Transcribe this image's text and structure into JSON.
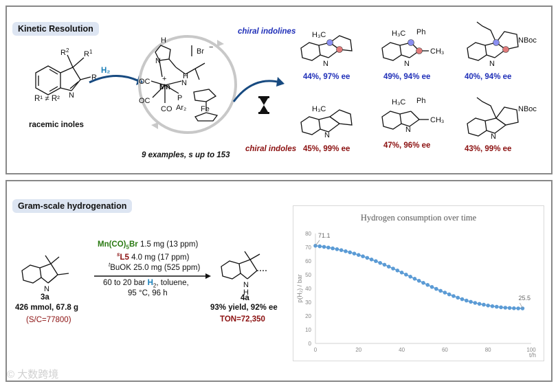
{
  "top_panel": {
    "title": "Kinetic Resolution",
    "substrate_label": "racemic inoles",
    "r_labels": {
      "r1": "R",
      "r1_sup": "1",
      "r2": "R",
      "r2_sup": "2",
      "r": "R",
      "neq": "R¹ ≠ R²"
    },
    "h2_label": "H₂",
    "catalyst": {
      "br": "Br",
      "br_charge": "−",
      "mn": "Mn",
      "plus": "+",
      "oc1": "OC",
      "oc2": "OC",
      "co": "CO",
      "p": "P",
      "ar2": "Ar₂",
      "fe": "Fe",
      "n": "N",
      "h1": "H",
      "h2": "H"
    },
    "examples_label": "9 examples, s up to 153",
    "chiral_indolines_label": "chiral indolines",
    "chiral_indoles_label": "chiral indoles",
    "indolines": [
      {
        "result": "44%, 97% ee",
        "sub": "H₃C",
        "nh": "N\nH"
      },
      {
        "result": "49%, 94% ee",
        "sub": "H₃C",
        "sub2": "Ph",
        "sub3": "CH₃"
      },
      {
        "result": "40%, 94% ee",
        "sub": "NBoc"
      }
    ],
    "indoles": [
      {
        "result": "45%, 99% ee",
        "sub": "H₃C"
      },
      {
        "result": "47%, 96% ee",
        "sub": "H₃C",
        "sub2": "Ph",
        "sub3": "CH₃"
      },
      {
        "result": "43%, 99% ee",
        "sub": "NBoc"
      }
    ]
  },
  "bottom_panel": {
    "title": "Gram-scale hydrogenation",
    "reactant": {
      "id": "3a",
      "amount": "426 mmol, 67.8 g",
      "sc": "(S/C=77800)"
    },
    "conditions": {
      "line1_a": "Mn(CO)",
      "line1_sub": "5",
      "line1_b": "Br",
      "line1_c": " 1.5 mg (13 ppm)",
      "line2_sup": "s",
      "line2_a": "L5",
      "line2_b": " 4.0 mg (17 ppm)",
      "line3_sup": "t",
      "line3": "BuOK 25.0 mg (525 ppm)",
      "line4_a": "60 to 20 bar ",
      "line4_b": "H",
      "line4_sub": "2",
      "line4_c": ", toluene,",
      "line5": "95 °C, 96 h"
    },
    "product": {
      "id": "4a",
      "yield": "93% yield, 92% ee",
      "ton": "TON=72,350",
      "nh": "N",
      "h": "H"
    }
  },
  "chart_data": {
    "type": "scatter",
    "title": "Hydrogen consumption over time",
    "xlabel": "t/h",
    "ylabel": "p(H₂) / bar",
    "xlim": [
      0,
      100
    ],
    "ylim": [
      0,
      80
    ],
    "xticks": [
      0,
      20,
      40,
      60,
      80,
      100
    ],
    "yticks": [
      0,
      10,
      20,
      30,
      40,
      50,
      60,
      70,
      80
    ],
    "annotations": [
      {
        "x": 0,
        "y": 71.1,
        "text": "71.1"
      },
      {
        "x": 96,
        "y": 25.5,
        "text": "25.5"
      }
    ],
    "color": "#5b9bd5",
    "x": [
      0,
      2,
      4,
      6,
      8,
      10,
      12,
      14,
      16,
      18,
      20,
      22,
      24,
      26,
      28,
      30,
      32,
      34,
      36,
      38,
      40,
      42,
      44,
      46,
      48,
      50,
      52,
      54,
      56,
      58,
      60,
      62,
      64,
      66,
      68,
      70,
      72,
      74,
      76,
      78,
      80,
      82,
      84,
      86,
      88,
      90,
      92,
      94,
      96
    ],
    "y": [
      71.1,
      70.7,
      70.3,
      69.8,
      69.2,
      68.6,
      67.9,
      67.1,
      66.3,
      65.4,
      64.4,
      63.4,
      62.3,
      61.1,
      59.9,
      58.6,
      57.3,
      55.9,
      54.5,
      53.1,
      51.6,
      50.1,
      48.6,
      47.1,
      45.6,
      44.1,
      42.6,
      41.1,
      39.7,
      38.3,
      37.0,
      35.7,
      34.5,
      33.3,
      32.2,
      31.2,
      30.3,
      29.5,
      28.8,
      28.2,
      27.6,
      27.1,
      26.7,
      26.3,
      26.0,
      25.8,
      25.6,
      25.5,
      25.5
    ]
  },
  "watermark": "© 大数跨境"
}
